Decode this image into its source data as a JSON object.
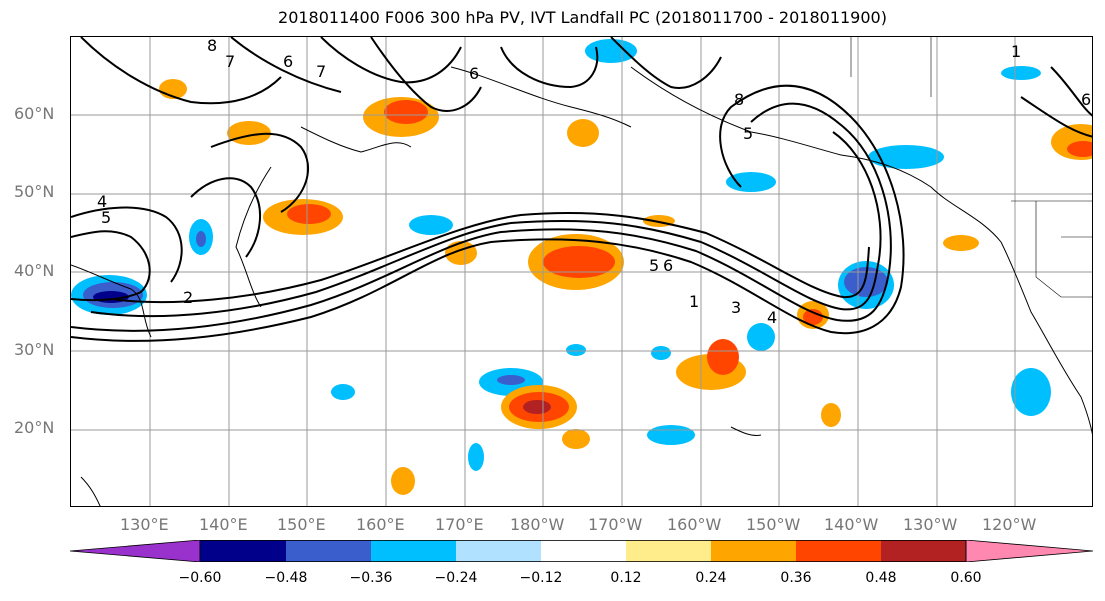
{
  "title": "2018011400 F006 300 hPa PV, IVT Landfall PC (2018011700 - 2018011900)",
  "lat_labels": [
    "60°N",
    "50°N",
    "40°N",
    "30°N",
    "20°N"
  ],
  "lon_labels": [
    "130°E",
    "140°E",
    "150°E",
    "160°E",
    "170°E",
    "180°W",
    "170°W",
    "160°W",
    "150°W",
    "140°W",
    "130°W",
    "120°W"
  ],
  "contour_labels": [
    "8",
    "7",
    "6",
    "7",
    "6",
    "4",
    "5",
    "2",
    "8",
    "5",
    "6",
    "1",
    "3",
    "4",
    "1",
    "5",
    "6"
  ],
  "colorbar": {
    "ticks": [
      "−0.60",
      "−0.48",
      "−0.36",
      "−0.24",
      "−0.12",
      "0.12",
      "0.24",
      "0.36",
      "0.48",
      "0.60"
    ],
    "colors": [
      "#9932cc",
      "#00008b",
      "#3a5fcd",
      "#00bfff",
      "#b0e2ff",
      "#ffffff",
      "#ffec8b",
      "#ffa500",
      "#ff4500",
      "#b22222",
      "#ff88b0"
    ]
  }
}
